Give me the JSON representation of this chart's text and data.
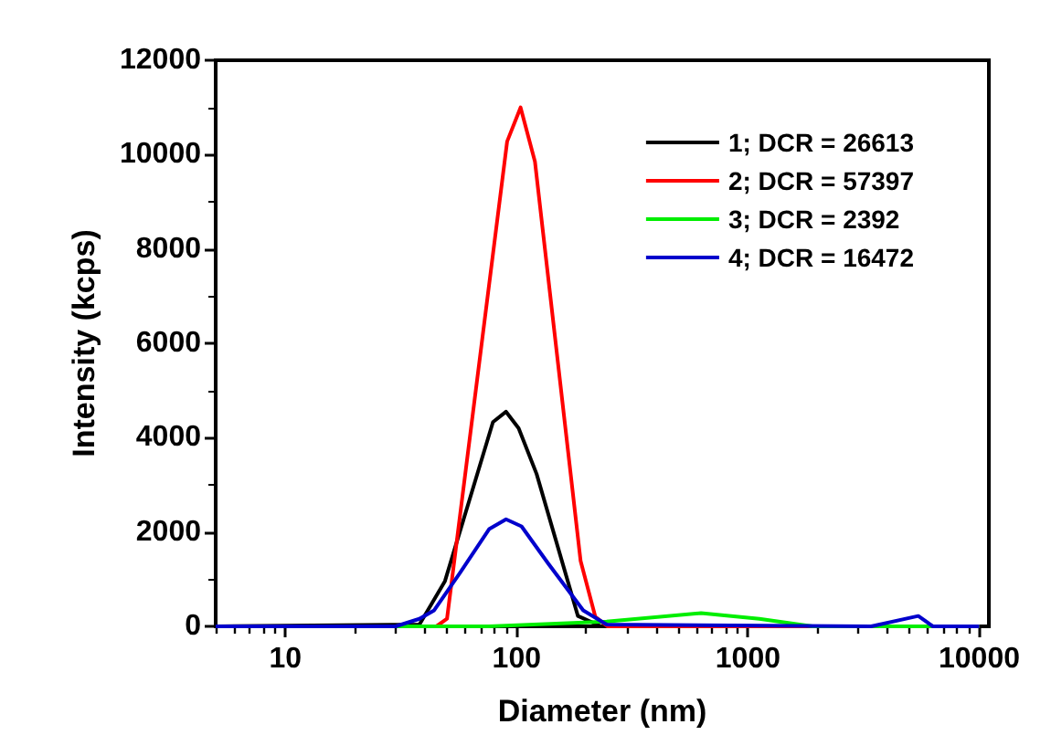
{
  "chart_data": {
    "type": "line",
    "xlabel": "Diameter (nm)",
    "ylabel": "Intensity (kcps)",
    "log": "x",
    "xlim": [
      5,
      11000
    ],
    "xticks": [
      10,
      100,
      1000,
      10000
    ],
    "ylim": [
      0,
      12000
    ],
    "yticks": [
      0,
      2000,
      4000,
      6000,
      8000,
      10000,
      12000
    ],
    "grid": false,
    "legend": "top right",
    "marker": "none",
    "line_style": "solid",
    "series": [
      {
        "name": "1; DCR = 26613",
        "color": "#000000",
        "x": [
          5,
          38,
          49,
          79,
          90,
          102,
          122,
          184,
          232,
          10000
        ],
        "values": [
          0,
          40,
          960,
          4330,
          4550,
          4200,
          3230,
          220,
          0,
          0
        ]
      },
      {
        "name": "2; DCR = 57397",
        "color": "#ff0000",
        "x": [
          5,
          45,
          50,
          91,
          104,
          120,
          189,
          219,
          247,
          10000
        ],
        "values": [
          0,
          0,
          160,
          10280,
          11000,
          9850,
          1390,
          200,
          0,
          0
        ]
      },
      {
        "name": "3; DCR = 2392",
        "color": "#00ee00",
        "x": [
          5,
          76,
          245,
          627,
          1120,
          1900,
          10000
        ],
        "values": [
          0,
          0,
          100,
          280,
          160,
          0,
          0
        ]
      },
      {
        "name": "4; DCR = 16472",
        "color": "#0000cc",
        "x": [
          5,
          30,
          38,
          44,
          57,
          76,
          90,
          105,
          137,
          194,
          245,
          3410,
          5450,
          6300,
          10000
        ],
        "values": [
          0,
          0,
          160,
          340,
          1140,
          2060,
          2270,
          2120,
          1330,
          340,
          40,
          0,
          220,
          0,
          0
        ]
      }
    ]
  }
}
